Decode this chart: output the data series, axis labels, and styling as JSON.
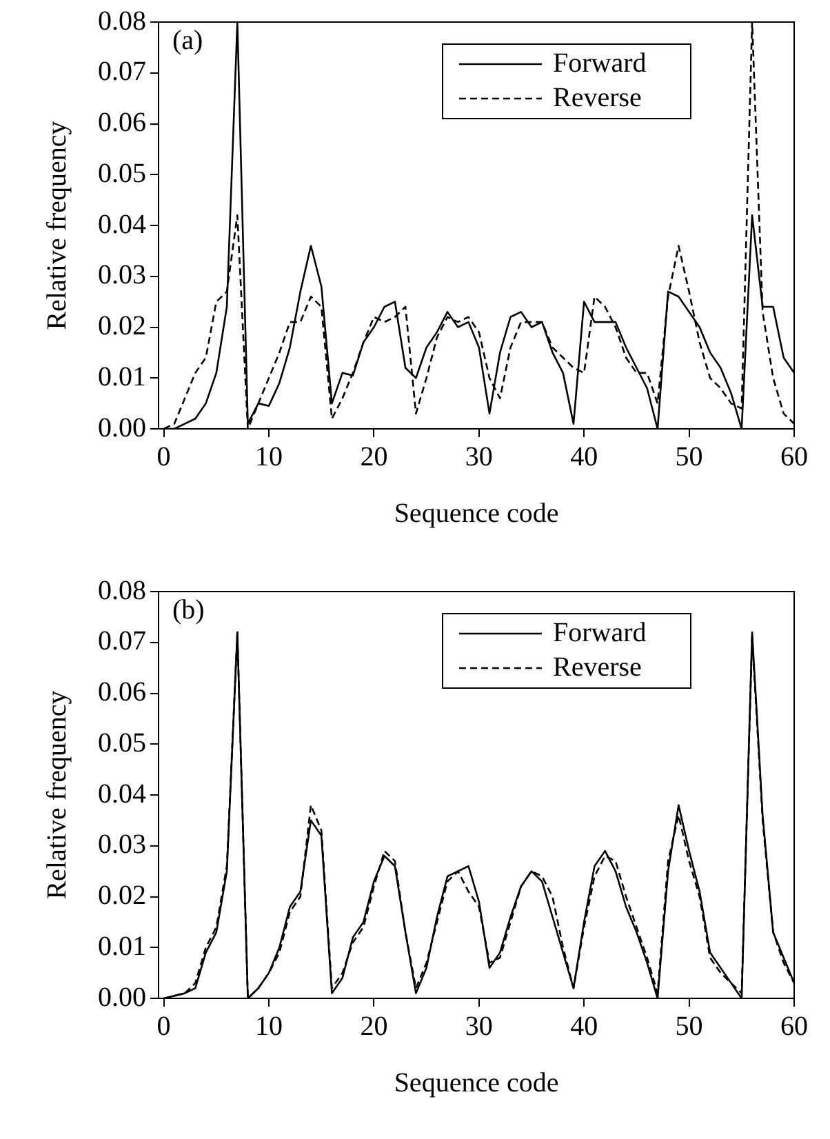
{
  "chart_data": [
    {
      "type": "line",
      "annotations": [
        "(a)"
      ],
      "xlabel": "Sequence code",
      "ylabel": "Relative frequency",
      "x": [
        0,
        1,
        2,
        3,
        4,
        5,
        6,
        7,
        8,
        9,
        10,
        11,
        12,
        13,
        14,
        15,
        16,
        17,
        18,
        19,
        20,
        21,
        22,
        23,
        24,
        25,
        26,
        27,
        28,
        29,
        30,
        31,
        32,
        33,
        34,
        35,
        36,
        37,
        38,
        39,
        40,
        41,
        42,
        43,
        44,
        45,
        46,
        47,
        48,
        49,
        50,
        51,
        52,
        53,
        54,
        55,
        56,
        57,
        58,
        59,
        60
      ],
      "series": [
        {
          "name": "Forward",
          "color": "#000000",
          "line_style": "solid",
          "values": [
            0,
            0,
            0.001,
            0.002,
            0.005,
            0.011,
            0.024,
            0.08,
            0.001,
            0.005,
            0.0045,
            0.009,
            0.016,
            0.027,
            0.036,
            0.028,
            0.005,
            0.011,
            0.0105,
            0.017,
            0.02,
            0.024,
            0.025,
            0.012,
            0.01,
            0.016,
            0.019,
            0.023,
            0.02,
            0.021,
            0.016,
            0.003,
            0.015,
            0.022,
            0.023,
            0.02,
            0.021,
            0.015,
            0.011,
            0.001,
            0.025,
            0.021,
            0.021,
            0.021,
            0.016,
            0.012,
            0.008,
            0,
            0.027,
            0.026,
            0.023,
            0.02,
            0.015,
            0.012,
            0.007,
            0,
            0.042,
            0.024,
            0.024,
            0.014,
            0.011
          ]
        },
        {
          "name": "Reverse",
          "color": "#000000",
          "line_style": "dashed",
          "values": [
            0,
            0.001,
            0.006,
            0.011,
            0.014,
            0.025,
            0.027,
            0.042,
            0,
            0.005,
            0.01,
            0.015,
            0.021,
            0.021,
            0.026,
            0.024,
            0.002,
            0.006,
            0.011,
            0.017,
            0.022,
            0.021,
            0.022,
            0.024,
            0.003,
            0.01,
            0.018,
            0.022,
            0.021,
            0.022,
            0.019,
            0.01,
            0.006,
            0.016,
            0.021,
            0.021,
            0.021,
            0.016,
            0.014,
            0.012,
            0.011,
            0.026,
            0.024,
            0.02,
            0.014,
            0.011,
            0.011,
            0.005,
            0.026,
            0.036,
            0.027,
            0.017,
            0.01,
            0.008,
            0.005,
            0.004,
            0.08,
            0.023,
            0.01,
            0.003,
            0.001
          ]
        }
      ],
      "xlim": [
        -0.5,
        60
      ],
      "xticks": [
        0,
        10,
        20,
        30,
        40,
        50,
        60
      ],
      "ylim": [
        0,
        0.08
      ],
      "yticks": [
        {
          "value": 0,
          "label": "0.00"
        },
        {
          "value": 0.01,
          "label": "0.01"
        },
        {
          "value": 0.02,
          "label": "0.02"
        },
        {
          "value": 0.03,
          "label": "0.03"
        },
        {
          "value": 0.04,
          "label": "0.04"
        },
        {
          "value": 0.05,
          "label": "0.05"
        },
        {
          "value": 0.06,
          "label": "0.06"
        },
        {
          "value": 0.07,
          "label": "0.07"
        },
        {
          "value": 0.08,
          "label": "0.08"
        }
      ],
      "grid": false,
      "legend": "top right",
      "marker": "none"
    },
    {
      "type": "line",
      "annotations": [
        "(b)"
      ],
      "xlabel": "Sequence code",
      "ylabel": "Relative frequency",
      "x": [
        0,
        1,
        2,
        3,
        4,
        5,
        6,
        7,
        8,
        9,
        10,
        11,
        12,
        13,
        14,
        15,
        16,
        17,
        18,
        19,
        20,
        21,
        22,
        23,
        24,
        25,
        26,
        27,
        28,
        29,
        30,
        31,
        32,
        33,
        34,
        35,
        36,
        37,
        38,
        39,
        40,
        41,
        42,
        43,
        44,
        45,
        46,
        47,
        48,
        49,
        50,
        51,
        52,
        53,
        54,
        55,
        56,
        57,
        58,
        59,
        60
      ],
      "series": [
        {
          "name": "Forward",
          "color": "#000000",
          "line_style": "solid",
          "values": [
            0,
            0.0005,
            0.001,
            0.002,
            0.009,
            0.013,
            0.025,
            0.072,
            0,
            0.002,
            0.005,
            0.01,
            0.018,
            0.021,
            0.035,
            0.032,
            0.001,
            0.004,
            0.012,
            0.015,
            0.023,
            0.028,
            0.026,
            0.013,
            0.001,
            0.006,
            0.016,
            0.024,
            0.025,
            0.026,
            0.019,
            0.006,
            0.009,
            0.016,
            0.022,
            0.025,
            0.023,
            0.016,
            0.009,
            0.002,
            0.015,
            0.026,
            0.029,
            0.025,
            0.018,
            0.013,
            0.007,
            0,
            0.025,
            0.038,
            0.029,
            0.021,
            0.009,
            0.006,
            0.003,
            0,
            0.072,
            0.036,
            0.013,
            0.008,
            0.003
          ]
        },
        {
          "name": "Reverse",
          "color": "#000000",
          "line_style": "dashed",
          "values": [
            0,
            0.0005,
            0.001,
            0.003,
            0.01,
            0.014,
            0.026,
            0.072,
            0,
            0.002,
            0.005,
            0.009,
            0.017,
            0.02,
            0.038,
            0.033,
            0.002,
            0.005,
            0.011,
            0.014,
            0.022,
            0.029,
            0.027,
            0.013,
            0.002,
            0.007,
            0.015,
            0.023,
            0.025,
            0.021,
            0.018,
            0.007,
            0.008,
            0.015,
            0.022,
            0.025,
            0.024,
            0.02,
            0.01,
            0.002,
            0.014,
            0.024,
            0.028,
            0.027,
            0.02,
            0.014,
            0.008,
            0.001,
            0.027,
            0.036,
            0.027,
            0.02,
            0.008,
            0.005,
            0.003,
            0.001,
            0.071,
            0.035,
            0.013,
            0.007,
            0.003
          ]
        }
      ],
      "xlim": [
        -0.5,
        60
      ],
      "xticks": [
        0,
        10,
        20,
        30,
        40,
        50,
        60
      ],
      "ylim": [
        0,
        0.08
      ],
      "yticks": [
        {
          "value": 0,
          "label": "0.00"
        },
        {
          "value": 0.01,
          "label": "0.01"
        },
        {
          "value": 0.02,
          "label": "0.02"
        },
        {
          "value": 0.03,
          "label": "0.03"
        },
        {
          "value": 0.04,
          "label": "0.04"
        },
        {
          "value": 0.05,
          "label": "0.05"
        },
        {
          "value": 0.06,
          "label": "0.06"
        },
        {
          "value": 0.07,
          "label": "0.07"
        },
        {
          "value": 0.08,
          "label": "0.08"
        }
      ],
      "grid": false,
      "legend": "top right",
      "marker": "none"
    }
  ]
}
